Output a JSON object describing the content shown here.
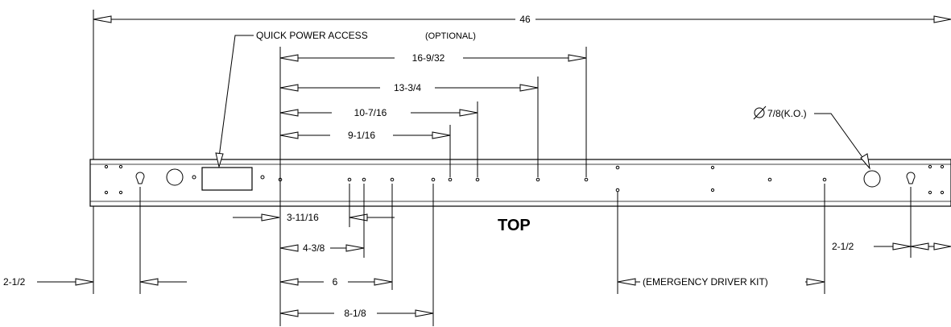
{
  "overall": {
    "label": "46"
  },
  "callouts": {
    "quick_power": "QUICK POWER ACCESS",
    "quick_power_optional": "(OPTIONAL)",
    "knockout": "7/8(K.O.)",
    "emergency": "(EMERGENCY DRIVER KIT)"
  },
  "view_label": "TOP",
  "top_dims": [
    "16-9/32",
    "13-3/4",
    "10-7/16",
    "9-1/16"
  ],
  "bottom_dims": [
    "3-11/16",
    "4-3/8",
    "6",
    "8-1/8"
  ],
  "end_dims": {
    "left": "2-1/2",
    "right": "2-1/2"
  }
}
